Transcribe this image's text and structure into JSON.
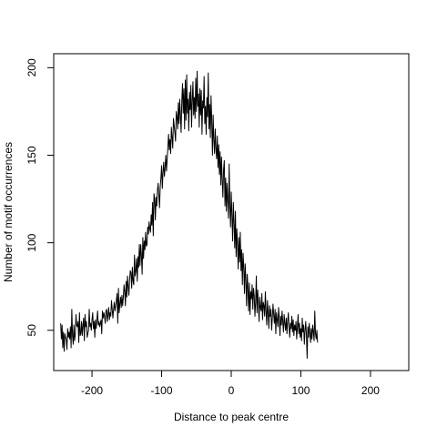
{
  "chart_data": {
    "type": "line",
    "title": "",
    "xlabel": "Distance to peak centre",
    "ylabel": "Number of motif occurrences",
    "xlim": [
      -255,
      255
    ],
    "ylim": [
      27,
      208
    ],
    "grid": false,
    "legend": "none",
    "line_color": "#000000",
    "x_ticks": [
      -200,
      -100,
      0,
      100,
      200
    ],
    "x_tick_labels": [
      "-200",
      "-100",
      "0",
      "100",
      "200"
    ],
    "y_ticks": [
      50,
      100,
      150,
      200
    ],
    "y_tick_labels": [
      "50",
      "100",
      "150",
      "200"
    ],
    "series": [
      {
        "x_start": -245,
        "x_step": 1,
        "values": [
          54,
          45,
          53,
          40,
          49,
          38,
          48,
          46,
          45,
          39,
          51,
          46,
          49,
          45,
          52,
          40,
          62,
          47,
          42,
          53,
          44,
          48,
          59,
          53,
          52,
          55,
          43,
          60,
          47,
          48,
          55,
          47,
          53,
          57,
          44,
          59,
          52,
          55,
          46,
          48,
          50,
          62,
          52,
          54,
          50,
          56,
          60,
          51,
          55,
          46,
          56,
          51,
          56,
          61,
          53,
          55,
          52,
          54,
          56,
          48,
          61,
          57,
          60,
          58,
          54,
          61,
          62,
          55,
          59,
          63,
          56,
          60,
          58,
          67,
          62,
          57,
          62,
          66,
          61,
          64,
          67,
          71,
          54,
          74,
          60,
          65,
          69,
          63,
          70,
          64,
          69,
          76,
          72,
          64,
          78,
          69,
          81,
          75,
          70,
          79,
          84,
          83,
          74,
          86,
          78,
          76,
          93,
          81,
          84,
          91,
          78,
          92,
          86,
          99,
          87,
          99,
          93,
          82,
          103,
          91,
          101,
          96,
          106,
          98,
          99,
          109,
          105,
          112,
          108,
          106,
          116,
          110,
          123,
          104,
          128,
          125,
          113,
          126,
          121,
          130,
          134,
          127,
          120,
          132,
          137,
          144,
          131,
          140,
          146,
          138,
          143,
          150,
          141,
          148,
          155,
          162,
          153,
          159,
          151,
          166,
          160,
          154,
          171,
          167,
          163,
          158,
          175,
          172,
          165,
          180,
          168,
          182,
          173,
          163,
          181,
          191,
          174,
          188,
          165,
          193,
          170,
          196,
          174,
          182,
          164,
          186,
          176,
          190,
          166,
          181,
          192,
          173,
          183,
          171,
          194,
          175,
          198,
          178,
          185,
          166,
          188,
          173,
          187,
          162,
          181,
          177,
          195,
          168,
          178,
          162,
          183,
          172,
          197,
          165,
          179,
          160,
          184,
          170,
          150,
          173,
          159,
          151,
          165,
          154,
          148,
          161,
          143,
          156,
          139,
          152,
          133,
          149,
          136,
          126,
          142,
          147,
          121,
          137,
          118,
          134,
          124,
          114,
          145,
          121,
          109,
          129,
          116,
          101,
          123,
          112,
          97,
          118,
          92,
          108,
          99,
          85,
          103,
          89,
          106,
          84,
          96,
          76,
          94,
          86,
          71,
          88,
          79,
          64,
          82,
          74,
          61,
          77,
          59,
          72,
          68,
          76,
          62,
          74,
          70,
          58,
          66,
          81,
          60,
          73,
          65,
          55,
          69,
          63,
          61,
          71,
          56,
          66,
          64,
          58,
          72,
          61,
          53,
          67,
          60,
          51,
          64,
          58,
          62,
          50,
          57,
          65,
          59,
          54,
          62,
          48,
          60,
          56,
          52,
          63,
          57,
          47,
          58,
          53,
          61,
          55,
          49,
          59,
          54,
          50,
          57,
          48,
          55,
          60,
          52,
          46,
          54,
          51,
          58,
          49,
          56,
          47,
          53,
          50,
          55,
          45,
          52,
          59,
          48,
          54,
          46,
          51,
          44,
          57,
          49,
          53,
          42,
          50,
          55,
          47,
          34,
          52,
          46,
          54,
          48,
          43,
          51,
          45,
          53,
          49,
          44,
          61,
          48,
          45,
          50,
          43
        ]
      }
    ]
  }
}
